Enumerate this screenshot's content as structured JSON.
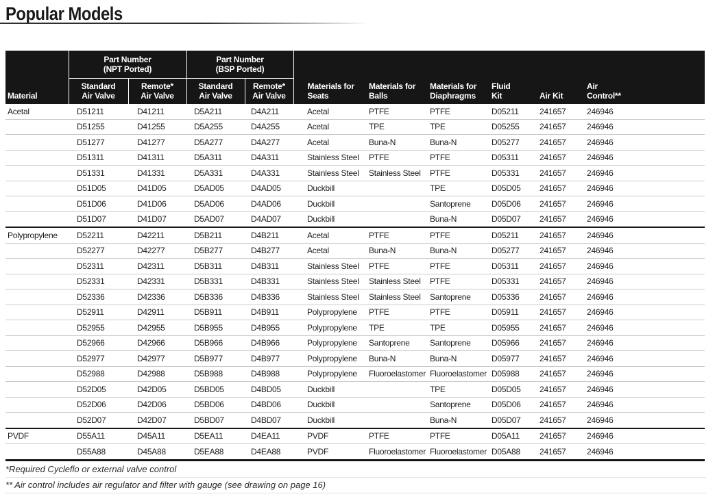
{
  "title": "Popular Models",
  "table": {
    "header": {
      "material": "Material",
      "groups": [
        {
          "label": "Part Number\n(NPT Ported)"
        },
        {
          "label": "Part Number\n(BSP Ported)"
        }
      ],
      "subcols": [
        "Standard\nAir Valve",
        "Remote*\nAir Valve",
        "Standard\nAir Valve",
        "Remote*\nAir Valve"
      ],
      "right_cols": [
        "Materials for\nSeats",
        "Materials for\nBalls",
        "Materials for\nDiaphragms",
        "Fluid\nKit",
        "Air Kit",
        "Air\nControl**"
      ]
    },
    "sections": [
      {
        "rows": [
          [
            "Acetal",
            "D51211",
            "D41211",
            "D5A211",
            "D4A211",
            "Acetal",
            "PTFE",
            "PTFE",
            "D05211",
            "241657",
            "246946"
          ],
          [
            "",
            "D51255",
            "D41255",
            "D5A255",
            "D4A255",
            "Acetal",
            "TPE",
            "TPE",
            "D05255",
            "241657",
            "246946"
          ],
          [
            "",
            "D51277",
            "D41277",
            "D5A277",
            "D4A277",
            "Acetal",
            "Buna-N",
            "Buna-N",
            "D05277",
            "241657",
            "246946"
          ],
          [
            "",
            "D51311",
            "D41311",
            "D5A311",
            "D4A311",
            "Stainless Steel",
            "PTFE",
            "PTFE",
            "D05311",
            "241657",
            "246946"
          ],
          [
            "",
            "D51331",
            "D41331",
            "D5A331",
            "D4A331",
            "Stainless Steel",
            "Stainless Steel",
            "PTFE",
            "D05331",
            "241657",
            "246946"
          ],
          [
            "",
            "D51D05",
            "D41D05",
            "D5AD05",
            "D4AD05",
            "Duckbill",
            "",
            "TPE",
            "D05D05",
            "241657",
            "246946"
          ],
          [
            "",
            "D51D06",
            "D41D06",
            "D5AD06",
            "D4AD06",
            "Duckbill",
            "",
            "Santoprene",
            "D05D06",
            "241657",
            "246946"
          ],
          [
            "",
            "D51D07",
            "D41D07",
            "D5AD07",
            "D4AD07",
            "Duckbill",
            "",
            "Buna-N",
            "D05D07",
            "241657",
            "246946"
          ]
        ]
      },
      {
        "rows": [
          [
            "Polypropylene",
            "D52211",
            "D42211",
            "D5B211",
            "D4B211",
            "Acetal",
            "PTFE",
            "PTFE",
            "D05211",
            "241657",
            "246946"
          ],
          [
            "",
            "D52277",
            "D42277",
            "D5B277",
            "D4B277",
            "Acetal",
            "Buna-N",
            "Buna-N",
            "D05277",
            "241657",
            "246946"
          ],
          [
            "",
            "D52311",
            "D42311",
            "D5B311",
            "D4B311",
            "Stainless Steel",
            "PTFE",
            "PTFE",
            "D05311",
            "241657",
            "246946"
          ],
          [
            "",
            "D52331",
            "D42331",
            "D5B331",
            "D4B331",
            "Stainless Steel",
            "Stainless Steel",
            "PTFE",
            "D05331",
            "241657",
            "246946"
          ],
          [
            "",
            "D52336",
            "D42336",
            "D5B336",
            "D4B336",
            "Stainless Steel",
            "Stainless Steel",
            "Santoprene",
            "D05336",
            "241657",
            "246946"
          ],
          [
            "",
            "D52911",
            "D42911",
            "D5B911",
            "D4B911",
            "Polypropylene",
            "PTFE",
            "PTFE",
            "D05911",
            "241657",
            "246946"
          ],
          [
            "",
            "D52955",
            "D42955",
            "D5B955",
            "D4B955",
            "Polypropylene",
            "TPE",
            "TPE",
            "D05955",
            "241657",
            "246946"
          ],
          [
            "",
            "D52966",
            "D42966",
            "D5B966",
            "D4B966",
            "Polypropylene",
            "Santoprene",
            "Santoprene",
            "D05966",
            "241657",
            "246946"
          ],
          [
            "",
            "D52977",
            "D42977",
            "D5B977",
            "D4B977",
            "Polypropylene",
            "Buna-N",
            "Buna-N",
            "D05977",
            "241657",
            "246946"
          ],
          [
            "",
            "D52988",
            "D42988",
            "D5B988",
            "D4B988",
            "Polypropylene",
            "Fluoroelastomer",
            "Fluoroelastomer",
            "D05988",
            "241657",
            "246946"
          ],
          [
            "",
            "D52D05",
            "D42D05",
            "D5BD05",
            "D4BD05",
            "Duckbill",
            "",
            "TPE",
            "D05D05",
            "241657",
            "246946"
          ],
          [
            "",
            "D52D06",
            "D42D06",
            "D5BD06",
            "D4BD06",
            "Duckbill",
            "",
            "Santoprene",
            "D05D06",
            "241657",
            "246946"
          ],
          [
            "",
            "D52D07",
            "D42D07",
            "D5BD07",
            "D4BD07",
            "Duckbill",
            "",
            "Buna-N",
            "D05D07",
            "241657",
            "246946"
          ]
        ]
      },
      {
        "rows": [
          [
            "PVDF",
            "D55A11",
            "D45A11",
            "D5EA11",
            "D4EA11",
            "PVDF",
            "PTFE",
            "PTFE",
            "D05A11",
            "241657",
            "246946"
          ],
          [
            "",
            "D55A88",
            "D45A88",
            "D5EA88",
            "D4EA88",
            "PVDF",
            "Fluoroelastomer",
            "Fluoroelastomer",
            "D05A88",
            "241657",
            "246946"
          ]
        ]
      }
    ]
  },
  "footnotes": [
    "*Required Cycleflo or external valve control",
    "** Air control includes air regulator and filter with gauge (see drawing on page 16)"
  ]
}
